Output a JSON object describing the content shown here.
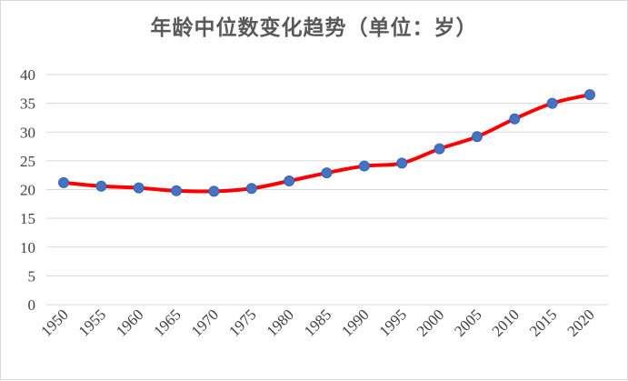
{
  "chart_data": {
    "type": "line",
    "title": "年龄中位数变化趋势（单位：岁）",
    "xlabel": "",
    "ylabel": "",
    "categories": [
      "1950",
      "1955",
      "1960",
      "1965",
      "1970",
      "1975",
      "1980",
      "1985",
      "1990",
      "1995",
      "2000",
      "2005",
      "2010",
      "2015",
      "2020"
    ],
    "series": [
      {
        "values": [
          21.2,
          20.6,
          20.3,
          19.8,
          19.7,
          20.2,
          21.5,
          22.9,
          24.1,
          24.6,
          27.1,
          29.2,
          32.3,
          35.0,
          36.5
        ],
        "color": "#ff0000",
        "marker_color": "#4472c4"
      }
    ],
    "yticks": [
      "0",
      "5",
      "10",
      "15",
      "20",
      "25",
      "30",
      "35",
      "40"
    ],
    "ylim": [
      0,
      40
    ],
    "grid": true,
    "legend": "none",
    "smooth": true
  }
}
